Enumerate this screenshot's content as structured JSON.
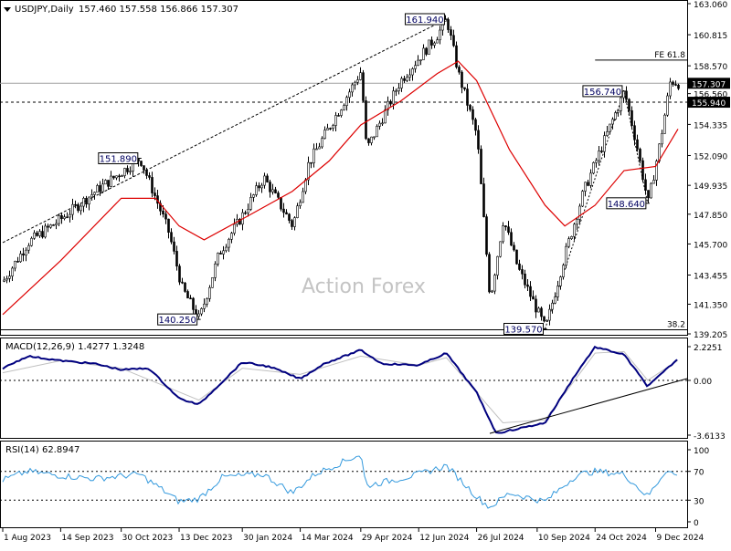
{
  "header": {
    "symbol": "USDJPY,Daily",
    "ohlc": "157.460 157.558 156.866 157.307"
  },
  "watermark": "Action Forex",
  "colors": {
    "candle": "#000000",
    "ma": "#dd0000",
    "macd_line": "#00007f",
    "macd_signal": "#c0c0c0",
    "rsi": "#3399dd",
    "price_label_bg": "#000000",
    "grid_dash": "#000000"
  },
  "chart_data": [
    {
      "type": "candlestick",
      "title": "USDJPY,Daily",
      "ylim": [
        139.205,
        163.06
      ],
      "y_ticks": [
        "163.060",
        "160.815",
        "158.570",
        "156.560",
        "154.335",
        "152.090",
        "149.935",
        "147.850",
        "145.700",
        "143.455",
        "141.350",
        "139.205"
      ],
      "x_ticks": [
        "1 Aug 2023",
        "14 Sep 2023",
        "30 Oct 2023",
        "13 Dec 2023",
        "30 Jan 2024",
        "14 Mar 2024",
        "29 Apr 2024",
        "12 Jun 2024",
        "26 Jul 2024",
        "10 Sep 2024",
        "24 Oct 2024",
        "9 Dec 2024"
      ],
      "price_path": [
        {
          "d": "2023-08-01",
          "v": 143.0
        },
        {
          "d": "2023-08-20",
          "v": 145.8
        },
        {
          "d": "2023-09-14",
          "v": 147.5
        },
        {
          "d": "2023-10-10",
          "v": 149.5
        },
        {
          "d": "2023-11-13",
          "v": 151.89
        },
        {
          "d": "2023-11-25",
          "v": 149.0
        },
        {
          "d": "2023-12-05",
          "v": 146.5
        },
        {
          "d": "2023-12-15",
          "v": 142.5
        },
        {
          "d": "2023-12-28",
          "v": 140.25
        },
        {
          "d": "2024-01-12",
          "v": 145.0
        },
        {
          "d": "2024-01-30",
          "v": 147.8
        },
        {
          "d": "2024-02-15",
          "v": 150.5
        },
        {
          "d": "2024-03-08",
          "v": 147.0
        },
        {
          "d": "2024-03-20",
          "v": 151.5
        },
        {
          "d": "2024-04-29",
          "v": 158.2
        },
        {
          "d": "2024-05-03",
          "v": 152.5
        },
        {
          "d": "2024-05-29",
          "v": 157.5
        },
        {
          "d": "2024-06-26",
          "v": 160.8
        },
        {
          "d": "2024-07-03",
          "v": 161.94
        },
        {
          "d": "2024-07-12",
          "v": 158.0
        },
        {
          "d": "2024-07-26",
          "v": 153.5
        },
        {
          "d": "2024-08-05",
          "v": 141.7
        },
        {
          "d": "2024-08-15",
          "v": 147.5
        },
        {
          "d": "2024-08-26",
          "v": 144.0
        },
        {
          "d": "2024-09-16",
          "v": 139.57
        },
        {
          "d": "2024-10-01",
          "v": 145.0
        },
        {
          "d": "2024-10-15",
          "v": 149.5
        },
        {
          "d": "2024-11-15",
          "v": 156.74
        },
        {
          "d": "2024-11-24",
          "v": 153.0
        },
        {
          "d": "2024-12-03",
          "v": 148.64
        },
        {
          "d": "2024-12-12",
          "v": 153.0
        },
        {
          "d": "2024-12-20",
          "v": 157.5
        },
        {
          "d": "2024-12-26",
          "v": 157.307
        }
      ],
      "ma_path": [
        {
          "d": "2023-08-01",
          "v": 140.6
        },
        {
          "d": "2023-09-14",
          "v": 144.5
        },
        {
          "d": "2023-10-30",
          "v": 149.0
        },
        {
          "d": "2023-11-25",
          "v": 149.0
        },
        {
          "d": "2023-12-13",
          "v": 147.0
        },
        {
          "d": "2024-01-01",
          "v": 146.0
        },
        {
          "d": "2024-01-30",
          "v": 147.5
        },
        {
          "d": "2024-03-08",
          "v": 149.5
        },
        {
          "d": "2024-04-05",
          "v": 151.7
        },
        {
          "d": "2024-04-29",
          "v": 154.3
        },
        {
          "d": "2024-05-29",
          "v": 156.0
        },
        {
          "d": "2024-06-26",
          "v": 158.0
        },
        {
          "d": "2024-07-12",
          "v": 158.9
        },
        {
          "d": "2024-07-26",
          "v": 157.5
        },
        {
          "d": "2024-08-20",
          "v": 152.5
        },
        {
          "d": "2024-09-16",
          "v": 148.5
        },
        {
          "d": "2024-10-01",
          "v": 147.0
        },
        {
          "d": "2024-10-24",
          "v": 148.5
        },
        {
          "d": "2024-11-15",
          "v": 151.0
        },
        {
          "d": "2024-12-09",
          "v": 151.3
        },
        {
          "d": "2024-12-26",
          "v": 154.0
        }
      ],
      "labels": [
        {
          "text": "151.890",
          "d": "2023-11-13",
          "v": 151.89,
          "side": "left"
        },
        {
          "text": "140.250",
          "d": "2023-12-28",
          "v": 140.25,
          "side": "left"
        },
        {
          "text": "161.940",
          "d": "2024-07-03",
          "v": 161.94,
          "side": "left"
        },
        {
          "text": "139.570",
          "d": "2024-09-16",
          "v": 139.57,
          "side": "left"
        },
        {
          "text": "156.740",
          "d": "2024-11-15",
          "v": 156.74,
          "side": "left"
        },
        {
          "text": "148.640",
          "d": "2024-12-03",
          "v": 148.64,
          "side": "left"
        }
      ],
      "trendline": {
        "from": {
          "d": "2023-08-01",
          "v": 145.8
        },
        "to": {
          "d": "2024-07-03",
          "v": 161.94
        }
      },
      "pivot_line": [
        {
          "d": "2024-09-16",
          "v": 139.57
        },
        {
          "d": "2024-11-15",
          "v": 156.74
        },
        {
          "d": "2024-12-03",
          "v": 148.64
        }
      ],
      "fib": {
        "fe": "FE 61.8",
        "fe_value": 158.98,
        "fe_from": "2024-10-24",
        "retr": "38.2",
        "retr_value": 139.5
      },
      "current_price": {
        "text": "157.307",
        "value": 157.307
      },
      "support_level": {
        "text": "155.940",
        "value": 155.94
      },
      "last_price_line": 157.307
    },
    {
      "type": "line",
      "title": "MACD(12,26,9) 1.4277 1.3248",
      "ylim": [
        -3.6133,
        2.2251
      ],
      "y_ticks": [
        "2.2251",
        "0.00",
        "-3.6133"
      ],
      "series": [
        {
          "name": "MACD",
          "points": [
            {
              "d": "2023-08-01",
              "v": 0.8
            },
            {
              "d": "2023-08-20",
              "v": 1.6
            },
            {
              "d": "2023-09-14",
              "v": 1.3
            },
            {
              "d": "2023-10-10",
              "v": 1.1
            },
            {
              "d": "2023-10-30",
              "v": 0.7
            },
            {
              "d": "2023-11-20",
              "v": 0.8
            },
            {
              "d": "2023-12-13",
              "v": -1.2
            },
            {
              "d": "2023-12-28",
              "v": -1.6
            },
            {
              "d": "2024-01-30",
              "v": 1.2
            },
            {
              "d": "2024-02-20",
              "v": 0.9
            },
            {
              "d": "2024-03-14",
              "v": 0.1
            },
            {
              "d": "2024-04-01",
              "v": 1.1
            },
            {
              "d": "2024-04-29",
              "v": 2.0
            },
            {
              "d": "2024-05-15",
              "v": 1.1
            },
            {
              "d": "2024-06-12",
              "v": 1.0
            },
            {
              "d": "2024-07-03",
              "v": 1.8
            },
            {
              "d": "2024-07-26",
              "v": -0.8
            },
            {
              "d": "2024-08-10",
              "v": -3.5
            },
            {
              "d": "2024-09-16",
              "v": -2.8
            },
            {
              "d": "2024-10-10",
              "v": 0.5
            },
            {
              "d": "2024-10-24",
              "v": 2.2
            },
            {
              "d": "2024-11-15",
              "v": 1.7
            },
            {
              "d": "2024-12-03",
              "v": -0.4
            },
            {
              "d": "2024-12-26",
              "v": 1.4277
            }
          ]
        },
        {
          "name": "Signal",
          "points": [
            {
              "d": "2023-08-01",
              "v": 0.5
            },
            {
              "d": "2023-09-14",
              "v": 1.3
            },
            {
              "d": "2023-10-30",
              "v": 0.8
            },
            {
              "d": "2023-12-28",
              "v": -1.3
            },
            {
              "d": "2024-01-30",
              "v": 0.8
            },
            {
              "d": "2024-03-14",
              "v": 0.4
            },
            {
              "d": "2024-04-29",
              "v": 1.6
            },
            {
              "d": "2024-06-12",
              "v": 1.0
            },
            {
              "d": "2024-07-03",
              "v": 1.5
            },
            {
              "d": "2024-08-15",
              "v": -2.8
            },
            {
              "d": "2024-09-16",
              "v": -2.6
            },
            {
              "d": "2024-10-24",
              "v": 1.8
            },
            {
              "d": "2024-11-15",
              "v": 1.9
            },
            {
              "d": "2024-12-03",
              "v": 0.0
            },
            {
              "d": "2024-12-26",
              "v": 1.3248
            }
          ]
        }
      ],
      "trendline": {
        "from": {
          "d": "2024-08-05",
          "v": -3.5
        },
        "to": {
          "d": "2024-12-26",
          "v": 0.0
        }
      }
    },
    {
      "type": "line",
      "title": "RSI(14) 62.8947",
      "ylim": [
        0,
        100
      ],
      "y_ticks": [
        "100",
        "70",
        "30",
        "0"
      ],
      "levels": [
        70,
        30
      ],
      "series": [
        {
          "name": "RSI",
          "points": [
            {
              "d": "2023-08-01",
              "v": 58
            },
            {
              "d": "2023-08-20",
              "v": 70
            },
            {
              "d": "2023-09-14",
              "v": 64
            },
            {
              "d": "2023-10-10",
              "v": 60
            },
            {
              "d": "2023-11-13",
              "v": 66
            },
            {
              "d": "2023-11-30",
              "v": 45
            },
            {
              "d": "2023-12-13",
              "v": 28
            },
            {
              "d": "2023-12-28",
              "v": 32
            },
            {
              "d": "2024-01-15",
              "v": 62
            },
            {
              "d": "2024-02-15",
              "v": 66
            },
            {
              "d": "2024-03-08",
              "v": 40
            },
            {
              "d": "2024-03-25",
              "v": 66
            },
            {
              "d": "2024-04-29",
              "v": 94
            },
            {
              "d": "2024-05-03",
              "v": 50
            },
            {
              "d": "2024-05-29",
              "v": 60
            },
            {
              "d": "2024-06-12",
              "v": 66
            },
            {
              "d": "2024-07-03",
              "v": 78
            },
            {
              "d": "2024-07-26",
              "v": 35
            },
            {
              "d": "2024-08-05",
              "v": 20
            },
            {
              "d": "2024-08-20",
              "v": 40
            },
            {
              "d": "2024-09-16",
              "v": 28
            },
            {
              "d": "2024-10-10",
              "v": 65
            },
            {
              "d": "2024-10-24",
              "v": 70
            },
            {
              "d": "2024-11-15",
              "v": 66
            },
            {
              "d": "2024-12-03",
              "v": 35
            },
            {
              "d": "2024-12-17",
              "v": 72
            },
            {
              "d": "2024-12-26",
              "v": 62.8947
            }
          ]
        }
      ]
    }
  ]
}
